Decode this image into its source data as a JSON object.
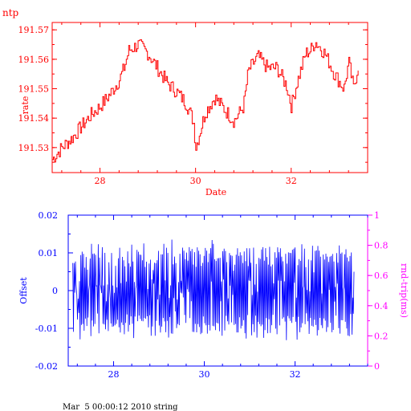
{
  "chart_data": [
    {
      "type": "line",
      "title": "ntp",
      "xlabel": "Date",
      "ylabel": "rate",
      "xlim": [
        27.0,
        33.6
      ],
      "ylim": [
        191.5215,
        191.5725
      ],
      "xticks": [
        28,
        30,
        32
      ],
      "yticks": [
        191.53,
        191.54,
        191.55,
        191.56,
        191.57
      ],
      "ytick_labels": [
        "191.53",
        "191.54",
        "191.55",
        "191.56",
        "191.57"
      ],
      "color": "#ff0000",
      "grid": false,
      "series": [
        {
          "x": [
            27.0,
            27.2,
            27.4,
            27.6,
            27.8,
            28.0,
            28.2,
            28.4,
            28.5,
            28.6,
            28.8,
            29.0,
            29.2,
            29.4,
            29.6,
            29.8,
            29.95,
            30.0,
            30.1,
            30.2,
            30.4,
            30.6,
            30.8,
            31.0,
            31.1,
            31.3,
            31.5,
            31.7,
            31.9,
            32.0,
            32.1,
            32.3,
            32.4,
            32.5,
            32.7,
            32.9,
            33.1,
            33.2,
            33.3,
            33.4
          ],
          "y": [
            191.526,
            191.53,
            191.533,
            191.537,
            191.541,
            191.544,
            191.548,
            191.553,
            191.557,
            191.563,
            191.565,
            191.562,
            191.557,
            191.552,
            191.549,
            191.545,
            191.539,
            191.53,
            191.536,
            191.542,
            191.547,
            191.543,
            191.539,
            191.544,
            191.556,
            191.561,
            191.557,
            191.557,
            191.551,
            191.544,
            191.551,
            191.562,
            191.563,
            191.566,
            191.562,
            191.555,
            191.55,
            191.559,
            191.55,
            191.558
          ]
        }
      ]
    },
    {
      "type": "line",
      "title": "",
      "xlabel": "",
      "ylabel": "Offset",
      "y2label": "rnd-trip(ms)",
      "xlim": [
        27.0,
        33.6
      ],
      "ylim": [
        -0.02,
        0.02
      ],
      "y2lim": [
        0,
        1
      ],
      "xticks": [
        28,
        30,
        32
      ],
      "yticks": [
        -0.02,
        -0.01,
        0,
        0.01,
        0.02
      ],
      "ytick_labels": [
        "-0.02",
        "-0.01",
        "0",
        "0.01",
        "0.02"
      ],
      "y2ticks": [
        0,
        0.2,
        0.4,
        0.6,
        0.8,
        1
      ],
      "y2tick_labels": [
        "0",
        "0.2",
        "0.4",
        "0.6",
        "0.8",
        "1"
      ],
      "color": "#0000ff",
      "y2color": "#ff00ff",
      "grid": false,
      "series": [
        {
          "name": "Offset",
          "x_range": [
            27.1,
            33.3
          ],
          "amplitude_range": [
            -0.0145,
            0.0148
          ],
          "description_values": [
            0.008,
            -0.011,
            0.012,
            -0.012,
            0.011,
            -0.012,
            0.013,
            -0.011,
            0.012,
            -0.01,
            0.011,
            -0.013,
            0.01,
            -0.012,
            0.012,
            -0.011,
            0.014,
            -0.012,
            0.011,
            -0.013,
            0.012,
            -0.011,
            0.01,
            -0.012,
            0.012,
            -0.011,
            0.011,
            -0.012,
            0.013,
            -0.011,
            0.012,
            -0.012,
            0.011,
            -0.01,
            0.012,
            -0.013,
            0.011,
            -0.011,
            0.012,
            -0.012,
            0.01,
            -0.011,
            0.013,
            -0.012,
            0.011,
            -0.012,
            0.012,
            -0.011,
            0.011,
            -0.01,
            0.012,
            -0.012,
            0.011,
            -0.013,
            0.012,
            -0.011,
            0.01,
            -0.012,
            0.012,
            -0.011
          ]
        }
      ]
    }
  ],
  "footer": {
    "timestamp": "Mar  5 00:00:12 2010 string"
  }
}
